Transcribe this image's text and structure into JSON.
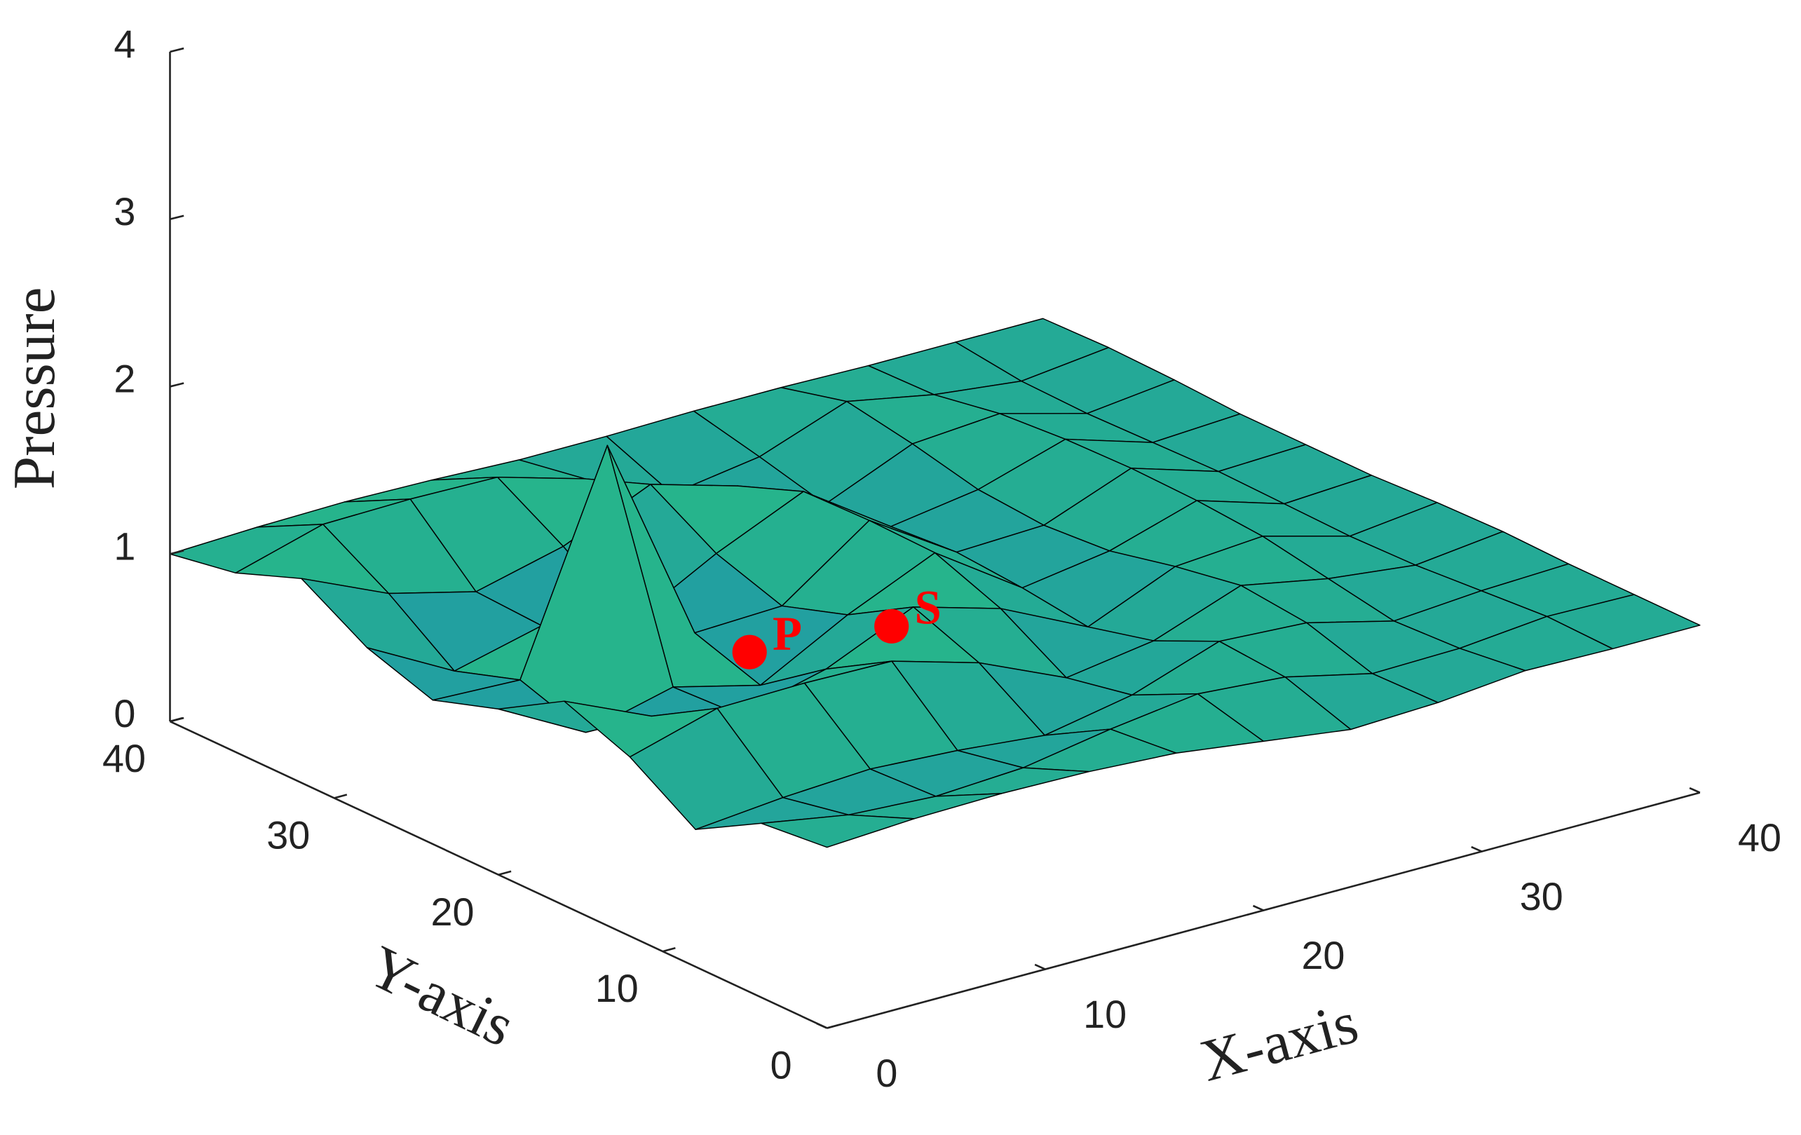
{
  "chart_data": {
    "type": "surface",
    "zlabel": "Pressure",
    "xlabel": "X-axis",
    "ylabel": "Y-axis",
    "x": [
      0,
      4,
      8,
      12,
      16,
      20,
      24,
      28,
      32,
      36,
      40
    ],
    "y": [
      0,
      4,
      8,
      12,
      16,
      20,
      24,
      28,
      32,
      36,
      40
    ],
    "z": [
      [
        1.08,
        1.11,
        1.12,
        1.11,
        1.08,
        1.01,
        0.94,
        0.96,
        1.01,
        1.0,
        1.0
      ],
      [
        1.04,
        0.95,
        0.92,
        0.95,
        1.04,
        1.11,
        1.07,
        0.95,
        0.96,
        1.01,
        1.0
      ],
      [
        0.82,
        0.87,
        0.9,
        0.87,
        0.82,
        0.92,
        1.1,
        1.07,
        0.94,
        0.98,
        1.0
      ],
      [
        1.07,
        1.22,
        1.23,
        1.22,
        1.07,
        0.84,
        0.92,
        1.11,
        1.01,
        0.95,
        1.01
      ],
      [
        1.22,
        0.99,
        0.86,
        0.99,
        1.22,
        1.07,
        0.82,
        1.04,
        1.08,
        0.94,
        1.0
      ],
      [
        0.99,
        0.71,
        0.84,
        0.71,
        0.99,
        1.22,
        0.87,
        0.95,
        1.11,
        0.95,
        0.98
      ],
      [
        0.86,
        0.84,
        2.1,
        0.84,
        0.86,
        1.23,
        0.9,
        0.92,
        1.12,
        0.96,
        0.98
      ],
      [
        0.99,
        0.71,
        0.84,
        0.71,
        0.99,
        1.22,
        0.87,
        0.95,
        1.11,
        0.95,
        0.98
      ],
      [
        1.22,
        0.99,
        0.86,
        0.99,
        1.22,
        1.07,
        0.82,
        1.04,
        1.08,
        0.94,
        1.0
      ],
      [
        1.07,
        1.22,
        1.23,
        1.22,
        1.07,
        0.84,
        0.92,
        1.11,
        1.01,
        0.95,
        1.01
      ],
      [
        1.0,
        1.02,
        1.03,
        1.02,
        1.0,
        1.0,
        1.01,
        1.01,
        1.0,
        1.0,
        1.0
      ]
    ],
    "xlim": [
      0,
      40
    ],
    "ylim": [
      0,
      40
    ],
    "zlim": [
      0,
      4
    ],
    "xticks": [
      0,
      10,
      20,
      30,
      40
    ],
    "yticks": [
      0,
      10,
      20,
      30,
      40
    ],
    "zticks": [
      0,
      1,
      2,
      3,
      4
    ],
    "colormap": "parula",
    "edgecolor": "#000000",
    "points": [
      {
        "label": "P",
        "x": 10,
        "y": 18,
        "z": 1.07,
        "color": "#ff0000"
      },
      {
        "label": "S",
        "x": 15,
        "y": 16,
        "z": 1.14,
        "color": "#ff0000"
      }
    ]
  }
}
